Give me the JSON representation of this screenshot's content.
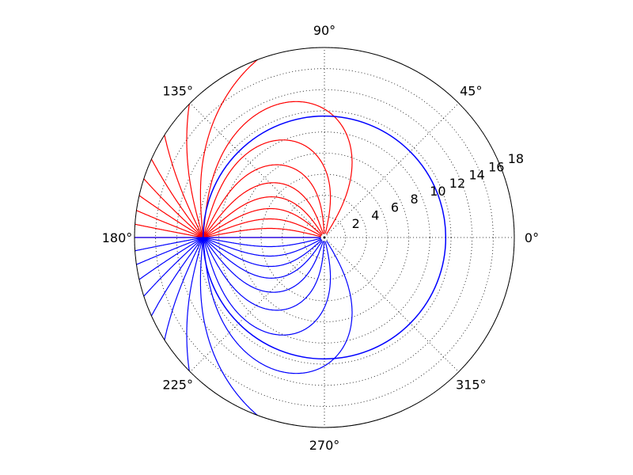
{
  "chart_data": {
    "type": "line",
    "projection": "polar",
    "title": "",
    "theta_tick_labels": [
      "0°",
      "45°",
      "90°",
      "135°",
      "180°",
      "225°",
      "270°",
      "315°"
    ],
    "theta_ticks_deg": [
      0,
      45,
      90,
      135,
      180,
      225,
      270,
      315
    ],
    "r_tick_labels": [
      "2",
      "4",
      "6",
      "8",
      "10",
      "12",
      "14",
      "16",
      "18"
    ],
    "r_ticks": [
      2,
      4,
      6,
      8,
      10,
      12,
      14,
      16,
      18
    ],
    "rlim": [
      0,
      18
    ],
    "r_label_angle_deg": 22.5,
    "grid": true,
    "legend": "none",
    "colors": {
      "red": "#ff0000",
      "blue": "#0000ff",
      "axis": "#000000",
      "grid": "#000000"
    },
    "series": [
      {
        "color": "red",
        "description": "field lines",
        "count": 18,
        "from": {
          "x": -11.5,
          "y": 0
        }
      },
      {
        "color": "blue",
        "description": "field lines",
        "count": 18,
        "from": {
          "x": -11.5,
          "y": 0
        }
      },
      {
        "color": "blue",
        "description": "circle",
        "shape": "circle",
        "center": {
          "x": 0,
          "y": 0
        },
        "radius": 11.5
      }
    ]
  }
}
